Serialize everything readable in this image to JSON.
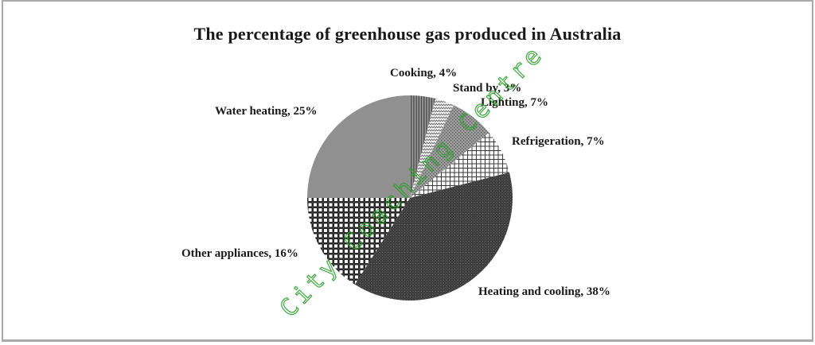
{
  "title": "The percentage of greenhouse gas produced in Australia",
  "watermark": {
    "text": "City Coaching Centre",
    "color": "#2da02d"
  },
  "chart_data": {
    "type": "pie",
    "title": "The percentage of greenhouse gas produced in Australia",
    "unit": "%",
    "start_angle_deg": 0,
    "direction": "clockwise",
    "legend": "none",
    "labels_position": "outside",
    "categories": [
      "Cooking",
      "Stand by",
      "Lighting",
      "Refrigeration",
      "Heating and cooling",
      "Other appliances",
      "Water heating"
    ],
    "values": [
      4,
      3,
      7,
      7,
      38,
      16,
      25
    ],
    "segments": [
      {
        "name": "Cooking",
        "value": 4,
        "label": "Cooking, 4%",
        "pattern": "vertical-stripes"
      },
      {
        "name": "Stand by",
        "value": 3,
        "label": "Stand by, 3%",
        "pattern": "zigzag"
      },
      {
        "name": "Lighting",
        "value": 7,
        "label": "Lighting, 7%",
        "pattern": "gray-dot-grid"
      },
      {
        "name": "Refrigeration",
        "value": 7,
        "label": "Refrigeration, 7%",
        "pattern": "open-grid"
      },
      {
        "name": "Heating and cooling",
        "value": 38,
        "label": "Heating and cooling, 38%",
        "pattern": "dark-fine-grid"
      },
      {
        "name": "Other appliances",
        "value": 16,
        "label": "Other appliances, 16%",
        "pattern": "waffle-check"
      },
      {
        "name": "Water heating",
        "value": 25,
        "label": "Water heating, 25%",
        "pattern": "solid-gray"
      }
    ],
    "pie_colors": {
      "solid_gray": "#909090",
      "dark_slice": "#3b3b3b",
      "grid_line": "#3c3c3c"
    }
  }
}
